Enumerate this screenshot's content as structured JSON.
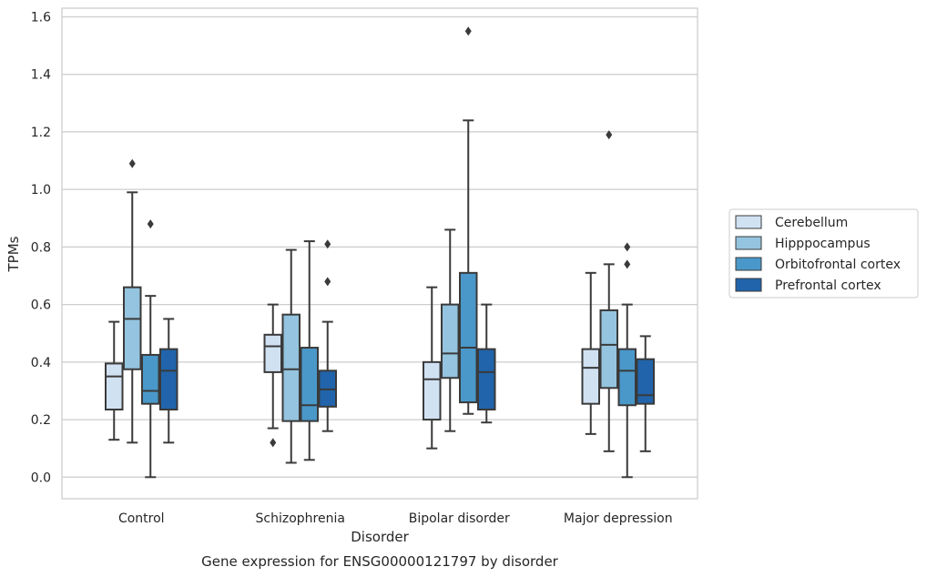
{
  "chart_data": {
    "type": "box",
    "title": "",
    "caption": "Gene expression for ENSG00000121797 by disorder",
    "xlabel": "Disorder",
    "ylabel": "TPMs",
    "ylim": [
      -0.075,
      1.63
    ],
    "yticks": [
      0.0,
      0.2,
      0.4,
      0.6,
      0.8,
      1.0,
      1.2,
      1.4,
      1.6
    ],
    "ytick_labels": [
      "0.0",
      "0.2",
      "0.4",
      "0.6",
      "0.8",
      "1.0",
      "1.2",
      "1.4",
      "1.6"
    ],
    "categories": [
      "Control",
      "Schizophrenia",
      "Bipolar disorder",
      "Major depression"
    ],
    "grid": "horizontal",
    "legend_position": "right",
    "series": [
      {
        "name": "Cerebellum",
        "color": "#d0e1f2",
        "boxes": [
          {
            "whislo": 0.13,
            "q1": 0.235,
            "med": 0.35,
            "q3": 0.395,
            "whishi": 0.54,
            "fliers": []
          },
          {
            "whislo": 0.17,
            "q1": 0.365,
            "med": 0.455,
            "q3": 0.495,
            "whishi": 0.6,
            "fliers": [
              0.12
            ]
          },
          {
            "whislo": 0.1,
            "q1": 0.2,
            "med": 0.34,
            "q3": 0.4,
            "whishi": 0.66,
            "fliers": []
          },
          {
            "whislo": 0.15,
            "q1": 0.255,
            "med": 0.38,
            "q3": 0.445,
            "whishi": 0.71,
            "fliers": []
          }
        ]
      },
      {
        "name": "Hipppocampus",
        "color": "#94c4df",
        "boxes": [
          {
            "whislo": 0.12,
            "q1": 0.375,
            "med": 0.55,
            "q3": 0.66,
            "whishi": 0.99,
            "fliers": [
              1.09
            ]
          },
          {
            "whislo": 0.05,
            "q1": 0.195,
            "med": 0.375,
            "q3": 0.565,
            "whishi": 0.79,
            "fliers": []
          },
          {
            "whislo": 0.16,
            "q1": 0.345,
            "med": 0.43,
            "q3": 0.6,
            "whishi": 0.86,
            "fliers": []
          },
          {
            "whislo": 0.09,
            "q1": 0.31,
            "med": 0.46,
            "q3": 0.58,
            "whishi": 0.74,
            "fliers": [
              1.19
            ]
          }
        ]
      },
      {
        "name": "Orbitofrontal cortex",
        "color": "#4a98c9",
        "boxes": [
          {
            "whislo": 0.0,
            "q1": 0.255,
            "med": 0.3,
            "q3": 0.425,
            "whishi": 0.63,
            "fliers": [
              0.88
            ]
          },
          {
            "whislo": 0.06,
            "q1": 0.195,
            "med": 0.25,
            "q3": 0.45,
            "whishi": 0.82,
            "fliers": []
          },
          {
            "whislo": 0.22,
            "q1": 0.26,
            "med": 0.45,
            "q3": 0.71,
            "whishi": 1.24,
            "fliers": [
              1.55
            ]
          },
          {
            "whislo": 0.0,
            "q1": 0.25,
            "med": 0.37,
            "q3": 0.445,
            "whishi": 0.6,
            "fliers": [
              0.74,
              0.8
            ]
          }
        ]
      },
      {
        "name": "Prefrontal cortex",
        "color": "#2164ab",
        "boxes": [
          {
            "whislo": 0.12,
            "q1": 0.235,
            "med": 0.37,
            "q3": 0.445,
            "whishi": 0.55,
            "fliers": []
          },
          {
            "whislo": 0.16,
            "q1": 0.245,
            "med": 0.305,
            "q3": 0.37,
            "whishi": 0.54,
            "fliers": [
              0.68,
              0.81
            ]
          },
          {
            "whislo": 0.19,
            "q1": 0.235,
            "med": 0.365,
            "q3": 0.445,
            "whishi": 0.6,
            "fliers": []
          },
          {
            "whislo": 0.09,
            "q1": 0.255,
            "med": 0.285,
            "q3": 0.41,
            "whishi": 0.49,
            "fliers": []
          }
        ]
      }
    ]
  }
}
